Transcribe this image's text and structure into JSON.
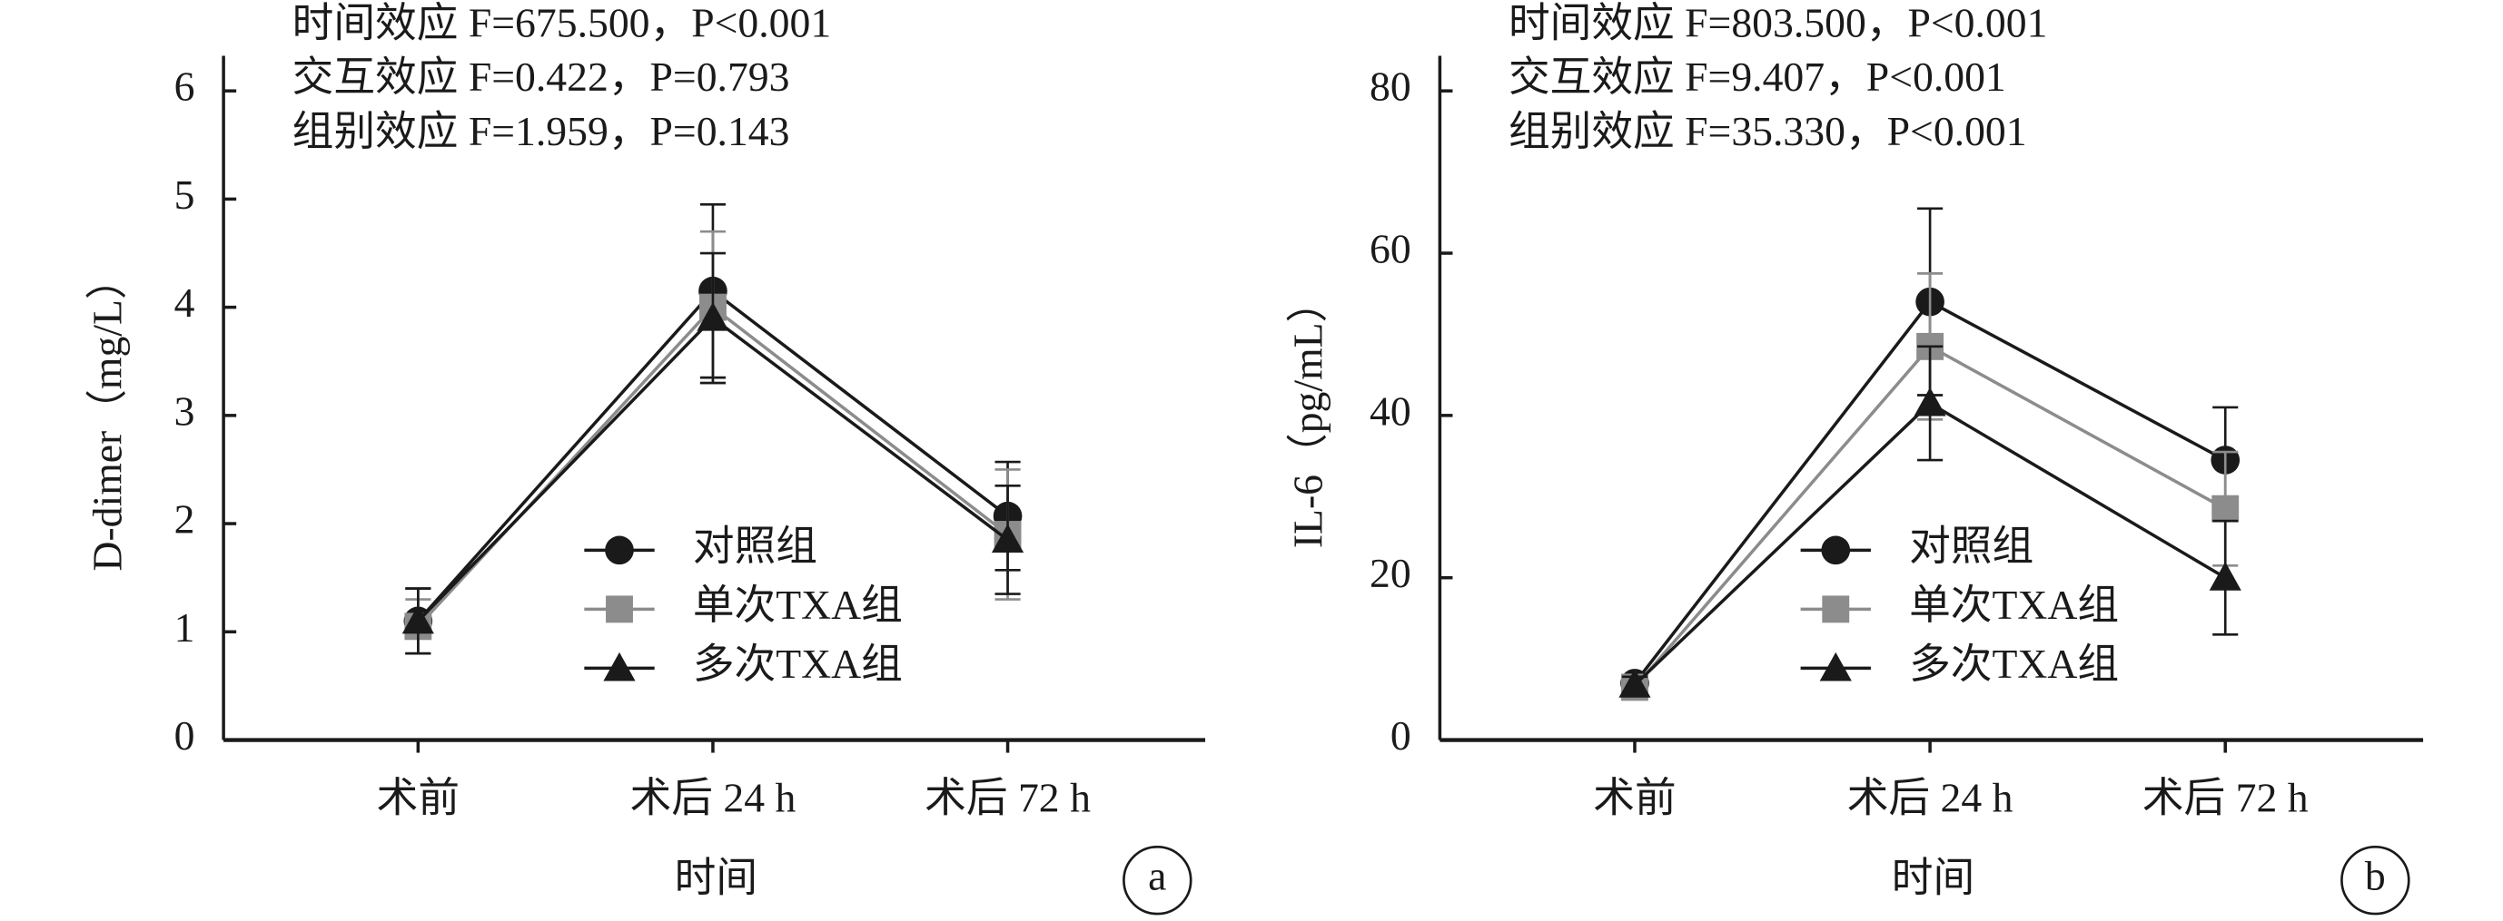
{
  "chart_data": [
    {
      "type": "line",
      "panel": "a",
      "annotations": [
        "时间效应 F=675.500，P<0.001",
        "交互效应 F=0.422，P=0.793",
        "组别效应 F=1.959，P=0.143"
      ],
      "y_label": "D-dimer（mg/L）",
      "x_label": "时间",
      "categories": [
        "术前",
        "术后 24 h",
        "术后 72 h"
      ],
      "ylim": [
        0,
        6
      ],
      "yticks": [
        0,
        1,
        2,
        3,
        4,
        5,
        6
      ],
      "series": [
        {
          "name": "对照组",
          "color": "#1a1a1a",
          "marker": "circle",
          "values": [
            1.1,
            4.15,
            2.07
          ],
          "errors": [
            0.3,
            0.8,
            0.5
          ]
        },
        {
          "name": "单次TXA组",
          "color": "#8c8c8c",
          "marker": "square",
          "values": [
            1.05,
            4.0,
            1.9
          ],
          "errors": [
            0.25,
            0.7,
            0.6
          ]
        },
        {
          "name": "多次TXA组",
          "color": "#1a1a1a",
          "marker": "triangle",
          "values": [
            1.1,
            3.9,
            1.85
          ],
          "errors": [
            0.3,
            0.6,
            0.5
          ]
        }
      ]
    },
    {
      "type": "line",
      "panel": "b",
      "annotations": [
        "时间效应 F=803.500，P<0.001",
        "交互效应 F=9.407，P<0.001",
        "组别效应 F=35.330，P<0.001"
      ],
      "y_label": "IL-6（pg/mL）",
      "x_label": "时间",
      "categories": [
        "术前",
        "术后 24 h",
        "术后 72 h"
      ],
      "ylim": [
        0,
        80
      ],
      "yticks": [
        0,
        20,
        40,
        60,
        80
      ],
      "series": [
        {
          "name": "对照组",
          "color": "#1a1a1a",
          "marker": "circle",
          "values": [
            7,
            54,
            34.5
          ],
          "errors": [
            1,
            11.5,
            6.5
          ]
        },
        {
          "name": "单次TXA组",
          "color": "#8c8c8c",
          "marker": "square",
          "values": [
            6.5,
            48.5,
            28.5
          ],
          "errors": [
            1,
            9,
            7
          ]
        },
        {
          "name": "多次TXA组",
          "color": "#1a1a1a",
          "marker": "triangle",
          "values": [
            6.8,
            41.5,
            20
          ],
          "errors": [
            1,
            7,
            7
          ]
        }
      ]
    }
  ]
}
